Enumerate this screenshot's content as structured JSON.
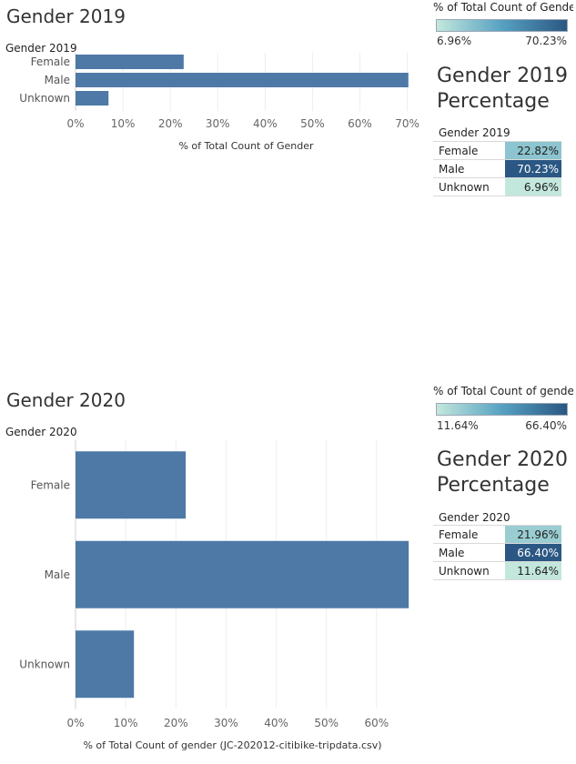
{
  "colors": {
    "bar": "#4e79a7",
    "scale_low": "#c3e7dd",
    "scale_mid": "#56a1c1",
    "scale_high": "#2a5783",
    "grid": "#eeeeee"
  },
  "chart_data": [
    {
      "type": "bar",
      "orientation": "horizontal",
      "title": "Gender 2019",
      "row_header": "Gender 2019",
      "categories": [
        "Female",
        "Male",
        "Unknown"
      ],
      "values": [
        22.82,
        70.23,
        6.96
      ],
      "xlabel": "% of Total Count of Gender",
      "xlim": [
        0,
        72
      ],
      "ticks": [
        0,
        10,
        20,
        30,
        40,
        50,
        60,
        70
      ],
      "tick_labels": [
        "0%",
        "10%",
        "20%",
        "30%",
        "40%",
        "50%",
        "60%",
        "70%"
      ],
      "grid": true,
      "legend": {
        "title": "% of Total Count of Gender",
        "min_label": "6.96%",
        "max_label": "70.23%",
        "min": 6.96,
        "max": 70.23
      },
      "table": {
        "title_line1": "Gender 2019",
        "title_line2": "Percentage",
        "header": "Gender 2019",
        "rows": [
          {
            "label": "Female",
            "value": 22.82,
            "text": "22.82%"
          },
          {
            "label": "Male",
            "value": 70.23,
            "text": "70.23%"
          },
          {
            "label": "Unknown",
            "value": 6.96,
            "text": "6.96%"
          }
        ]
      }
    },
    {
      "type": "bar",
      "orientation": "horizontal",
      "title": "Gender 2020",
      "row_header": "Gender 2020",
      "categories": [
        "Female",
        "Male",
        "Unknown"
      ],
      "values": [
        21.96,
        66.4,
        11.64
      ],
      "xlabel": "% of Total Count of gender (JC-202012-citibike-tripdata.csv)",
      "xlim": [
        0,
        68
      ],
      "ticks": [
        0,
        10,
        20,
        30,
        40,
        50,
        60
      ],
      "tick_labels": [
        "0%",
        "10%",
        "20%",
        "30%",
        "40%",
        "50%",
        "60%"
      ],
      "grid": true,
      "legend": {
        "title": "% of Total Count of gende..",
        "min_label": "11.64%",
        "max_label": "66.40%",
        "min": 11.64,
        "max": 66.4
      },
      "table": {
        "title_line1": "Gender 2020",
        "title_line2": "Percentage",
        "header": "Gender 2020",
        "rows": [
          {
            "label": "Female",
            "value": 21.96,
            "text": "21.96%"
          },
          {
            "label": "Male",
            "value": 66.4,
            "text": "66.40%"
          },
          {
            "label": "Unknown",
            "value": 11.64,
            "text": "11.64%"
          }
        ]
      }
    }
  ]
}
